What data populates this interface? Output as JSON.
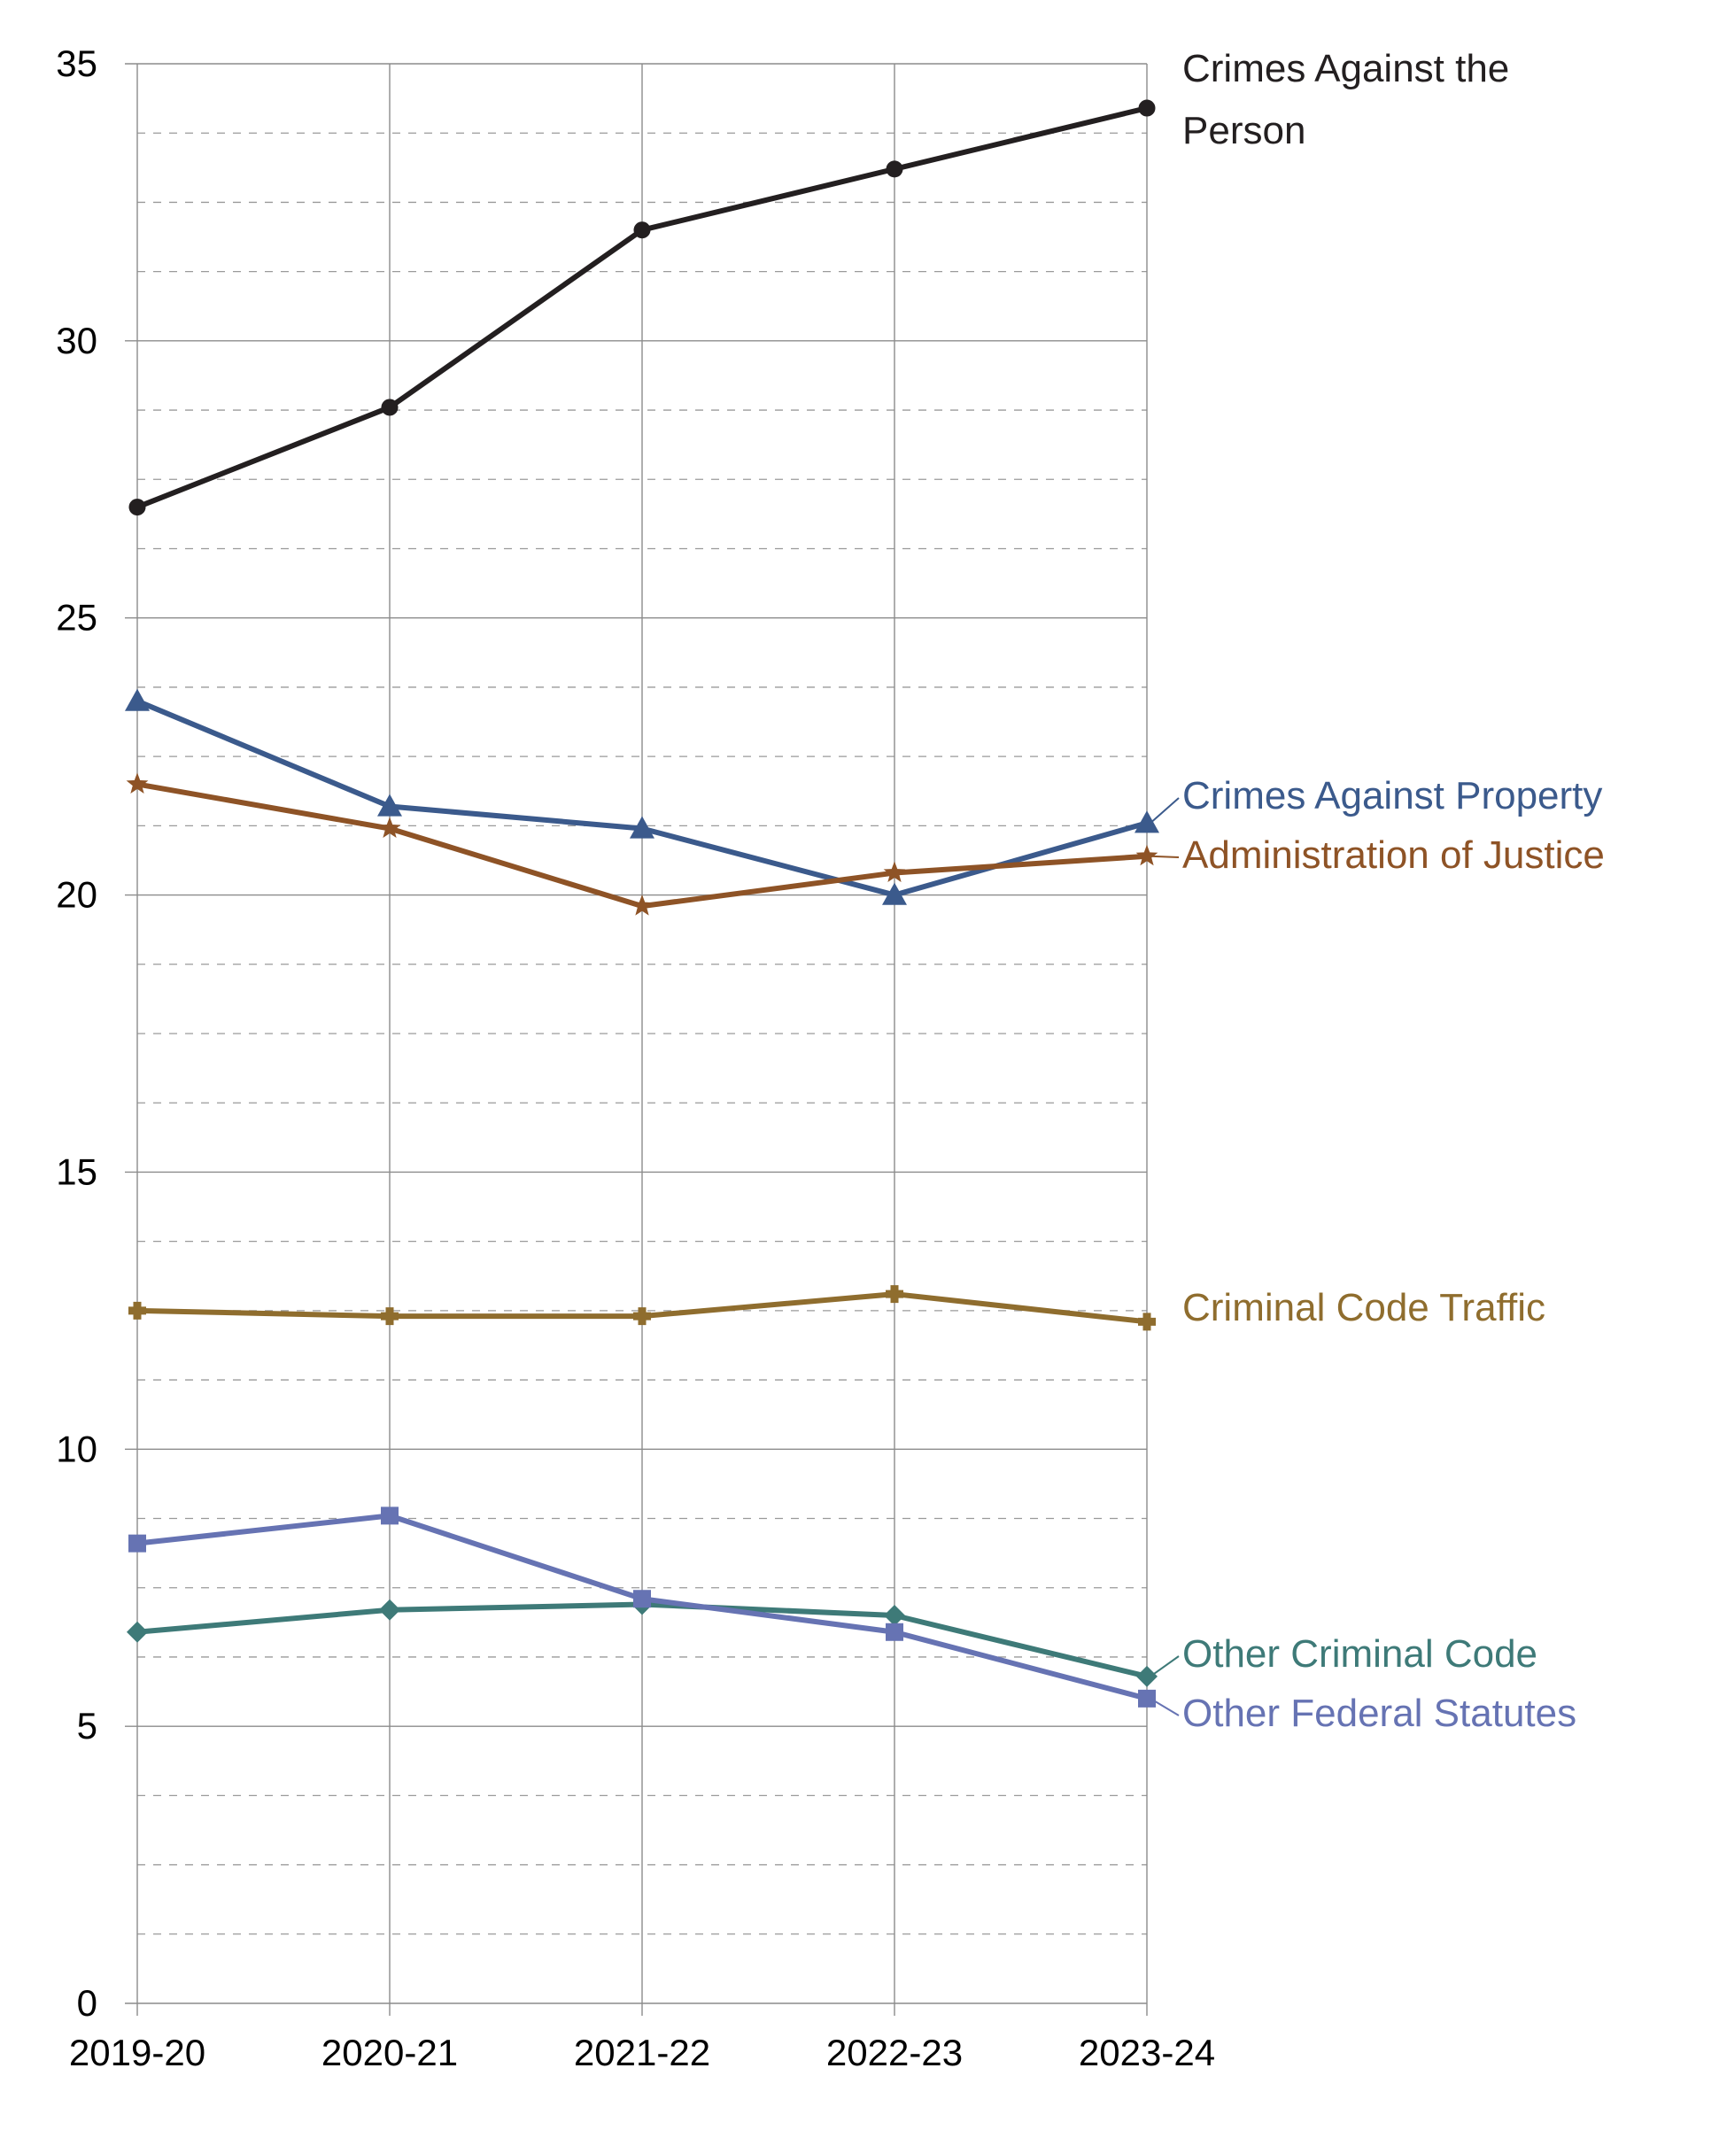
{
  "chart_data": {
    "type": "line",
    "title": "",
    "xlabel": "",
    "ylabel": "",
    "categories": [
      "2019-20",
      "2020-21",
      "2021-22",
      "2022-23",
      "2023-24"
    ],
    "ylim": [
      0,
      35
    ],
    "y_ticks": [
      0,
      5,
      10,
      15,
      20,
      25,
      30,
      35
    ],
    "grid": "major solid, minor dashed (y); vertical at each category",
    "legend": "direct labels at right end of each series",
    "series": [
      {
        "name": "Crimes Against the Person",
        "label_lines": [
          "Crimes Against the",
          "Person"
        ],
        "values": [
          27.0,
          28.8,
          32.0,
          33.1,
          34.2
        ],
        "color": "#231f20",
        "marker": "circle"
      },
      {
        "name": "Crimes Against Property",
        "label_lines": [
          "Crimes Against Property"
        ],
        "values": [
          23.5,
          21.6,
          21.2,
          20.0,
          21.3
        ],
        "color": "#3b5a8c",
        "marker": "triangle"
      },
      {
        "name": "Administration of Justice",
        "label_lines": [
          "Administration of Justice"
        ],
        "values": [
          22.0,
          21.2,
          19.8,
          20.4,
          20.7
        ],
        "color": "#8e5326",
        "marker": "star"
      },
      {
        "name": "Criminal Code Traffic",
        "label_lines": [
          "Criminal Code Traffic"
        ],
        "values": [
          12.5,
          12.4,
          12.4,
          12.8,
          12.3
        ],
        "color": "#8f6d2e",
        "marker": "cross"
      },
      {
        "name": "Other Criminal Code",
        "label_lines": [
          "Other Criminal Code"
        ],
        "values": [
          6.7,
          7.1,
          7.2,
          7.0,
          5.9
        ],
        "color": "#3e7a78",
        "marker": "diamond"
      },
      {
        "name": "Other Federal Statutes",
        "label_lines": [
          "Other Federal Statutes"
        ],
        "values": [
          8.3,
          8.8,
          7.3,
          6.7,
          5.5
        ],
        "color": "#6673b3",
        "marker": "square"
      }
    ]
  }
}
